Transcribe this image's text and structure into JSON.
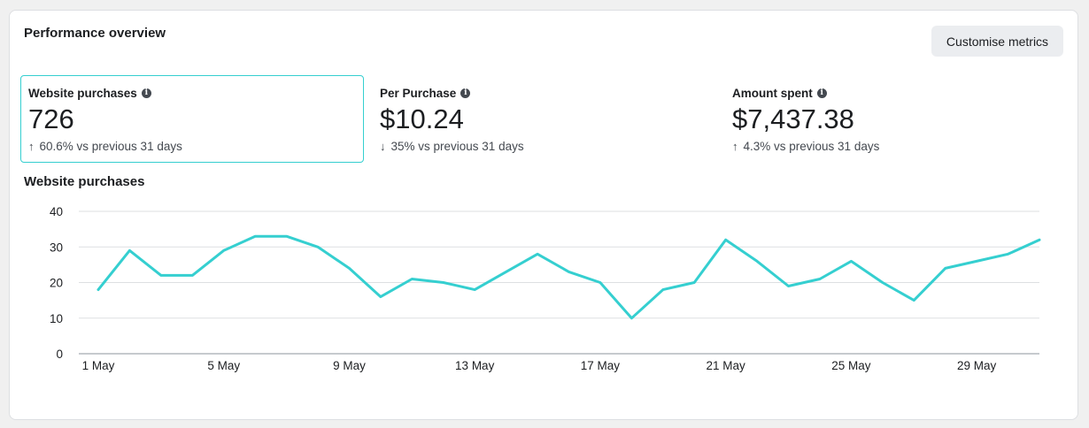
{
  "header": {
    "title": "Performance overview",
    "customise_label": "Customise metrics"
  },
  "metrics": [
    {
      "label": "Website purchases",
      "value": "726",
      "change": "60.6% vs previous 31 days",
      "direction": "up",
      "selected": true
    },
    {
      "label": "Per Purchase",
      "value": "$10.24",
      "change": "35% vs previous 31 days",
      "direction": "down",
      "selected": false
    },
    {
      "label": "Amount spent",
      "value": "$7,437.38",
      "change": "4.3% vs previous 31 days",
      "direction": "up",
      "selected": false
    }
  ],
  "icons": {
    "info": "info-icon",
    "up": "arrow-up-icon",
    "down": "arrow-down-icon"
  },
  "colors": {
    "accent": "#35cfd0",
    "grid": "#dddfe2"
  },
  "chart_data": {
    "type": "line",
    "title": "Website purchases",
    "xlabel": "",
    "ylabel": "",
    "ylim": [
      0,
      40
    ],
    "yticks": [
      0,
      10,
      20,
      30,
      40
    ],
    "xtick_labels": [
      "1 May",
      "5 May",
      "9 May",
      "13 May",
      "17 May",
      "21 May",
      "25 May",
      "29 May"
    ],
    "x": [
      "1 May",
      "2 May",
      "3 May",
      "4 May",
      "5 May",
      "6 May",
      "7 May",
      "8 May",
      "9 May",
      "10 May",
      "11 May",
      "12 May",
      "13 May",
      "14 May",
      "15 May",
      "16 May",
      "17 May",
      "18 May",
      "19 May",
      "20 May",
      "21 May",
      "22 May",
      "23 May",
      "24 May",
      "25 May",
      "26 May",
      "27 May",
      "28 May",
      "29 May",
      "30 May",
      "31 May"
    ],
    "values": [
      18,
      29,
      22,
      22,
      29,
      33,
      33,
      30,
      24,
      16,
      21,
      20,
      18,
      23,
      28,
      23,
      20,
      10,
      18,
      20,
      32,
      26,
      19,
      21,
      26,
      20,
      15,
      24,
      26,
      28,
      32
    ],
    "grid": true
  }
}
